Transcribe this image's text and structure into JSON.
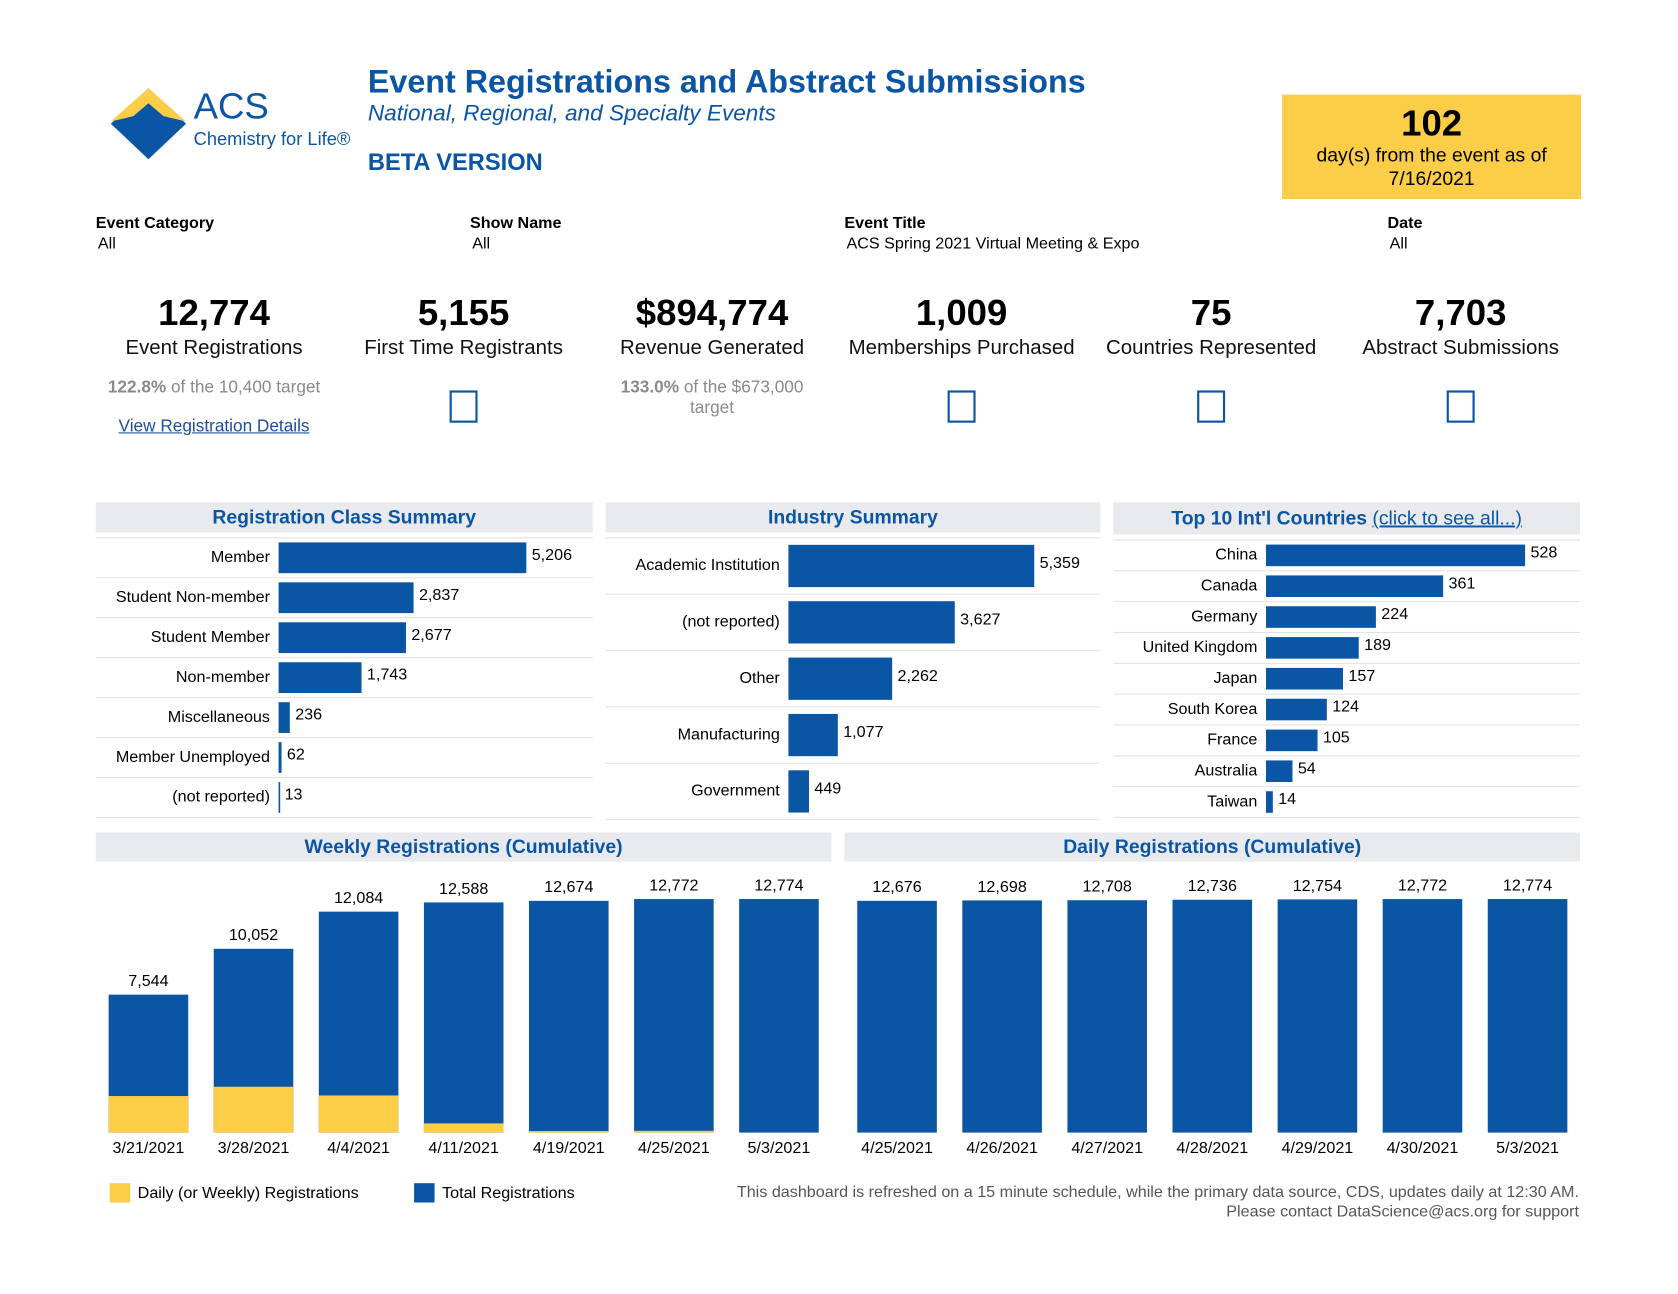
{
  "header": {
    "logo_main": "ACS",
    "logo_tagline": "Chemistry for Life®",
    "title": "Event Registrations and Abstract Submissions",
    "subtitle": "National, Regional, and Specialty Events",
    "version": "BETA VERSION",
    "countdown": {
      "days": "102",
      "note": "day(s) from the event as of",
      "date": "7/16/2021"
    }
  },
  "filters": [
    {
      "label": "Event Category",
      "value": "All"
    },
    {
      "label": "Show Name",
      "value": "All"
    },
    {
      "label": "Event Title",
      "value": "ACS Spring 2021 Virtual Meeting & Expo"
    },
    {
      "label": "Date",
      "value": "All"
    }
  ],
  "kpis": [
    {
      "value": "12,774",
      "label": "Event Registrations",
      "target_pct": "122.8%",
      "target_note": "of the 10,400 target",
      "link": "View Registration Details"
    },
    {
      "value": "5,155",
      "label": "First Time Registrants"
    },
    {
      "value": "$894,774",
      "label": "Revenue Generated",
      "target_pct": "133.0%",
      "target_note": "of the $673,000 target"
    },
    {
      "value": "1,009",
      "label": "Memberships Purchased"
    },
    {
      "value": "75",
      "label": "Countries Represented"
    },
    {
      "value": "7,703",
      "label": "Abstract Submissions"
    }
  ],
  "chart_data": [
    {
      "type": "hbar",
      "title": "Registration Class Summary",
      "categories": [
        "Member",
        "Student Non-member",
        "Student Member",
        "Non-member",
        "Miscellaneous",
        "Member Unemployed",
        "(not reported)"
      ],
      "values": [
        5206,
        2837,
        2677,
        1743,
        236,
        62,
        13
      ],
      "value_labels": [
        "5,206",
        "2,837",
        "2,677",
        "1,743",
        "236",
        "62",
        "13"
      ],
      "color": "#0b55a5",
      "xlim": [
        0,
        6600
      ]
    },
    {
      "type": "hbar",
      "title": "Industry Summary",
      "categories": [
        "Academic Institution",
        "(not reported)",
        "Other",
        "Manufacturing",
        "Government"
      ],
      "values": [
        5359,
        3627,
        2262,
        1077,
        449
      ],
      "value_labels": [
        "5,359",
        "3,627",
        "2,262",
        "1,077",
        "449"
      ],
      "color": "#0b55a5",
      "xlim": [
        0,
        6800
      ]
    },
    {
      "type": "hbar",
      "title": "Top 10 Int'l Countries",
      "title_link": "(click to see all...)",
      "categories": [
        "China",
        "Canada",
        "Germany",
        "United Kingdom",
        "Japan",
        "South Korea",
        "France",
        "Australia",
        "Taiwan"
      ],
      "values": [
        528,
        361,
        224,
        189,
        157,
        124,
        105,
        54,
        14
      ],
      "color": "#0b55a5",
      "xlim": [
        0,
        640
      ]
    },
    {
      "type": "column",
      "title": "Weekly Registrations (Cumulative)",
      "categories": [
        "3/21/2021",
        "3/28/2021",
        "4/4/2021",
        "4/11/2021",
        "4/19/2021",
        "4/25/2021",
        "5/3/2021"
      ],
      "series": [
        {
          "name": "Daily (or Weekly) Registrations",
          "color": "#fccd46",
          "values": [
            2000,
            2508,
            2032,
            504,
            86,
            98,
            2
          ]
        },
        {
          "name": "Total Registrations",
          "color": "#0b55a5",
          "values": [
            7544,
            10052,
            12084,
            12588,
            12674,
            12772,
            12774
          ],
          "value_labels": [
            "7,544",
            "10,052",
            "12,084",
            "12,588",
            "12,674",
            "12,772",
            "12,774"
          ]
        }
      ],
      "ylim": [
        0,
        14000
      ]
    },
    {
      "type": "column",
      "title": "Daily Registrations (Cumulative)",
      "categories": [
        "4/25/2021",
        "4/26/2021",
        "4/27/2021",
        "4/28/2021",
        "4/29/2021",
        "4/30/2021",
        "5/3/2021"
      ],
      "series": [
        {
          "color": "#0b55a5",
          "values": [
            12676,
            12698,
            12708,
            12736,
            12754,
            12772,
            12774
          ],
          "value_labels": [
            "12,676",
            "12,698",
            "12,708",
            "12,736",
            "12,754",
            "12,772",
            "12,774"
          ]
        }
      ],
      "ylim": [
        0,
        14000
      ]
    }
  ],
  "footer": [
    "This dashboard is refreshed on a 15 minute schedule, while the primary data source, CDS, updates daily at 12:30 AM.",
    "Please contact DataScience@acs.org for support"
  ]
}
